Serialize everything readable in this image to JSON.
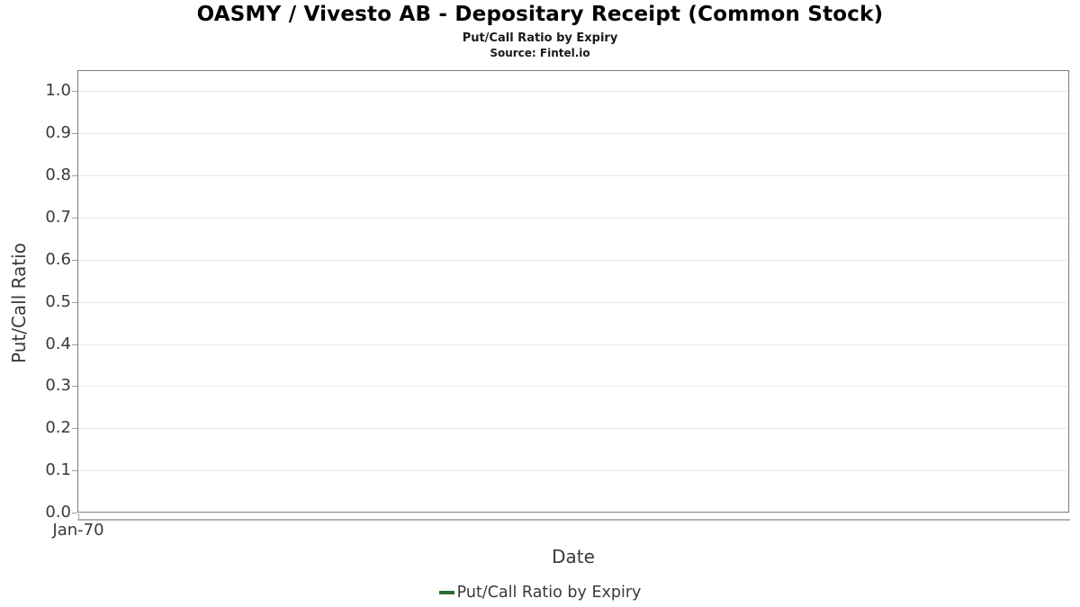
{
  "chart_data": {
    "type": "line",
    "title": "OASMY / Vivesto AB - Depositary Receipt (Common Stock)",
    "subtitle": "Put/Call Ratio by Expiry",
    "source": "Source: Fintel.io",
    "xlabel": "Date",
    "ylabel": "Put/Call Ratio",
    "x_ticks": [
      "Jan-70"
    ],
    "y_ticks": [
      0.0,
      0.1,
      0.2,
      0.3,
      0.4,
      0.5,
      0.6,
      0.7,
      0.8,
      0.9,
      1.0
    ],
    "ylim": [
      0,
      1.05
    ],
    "grid": true,
    "legend_position": "bottom",
    "series": [
      {
        "name": "Put/Call Ratio by Expiry",
        "color": "#2e6b34",
        "x": [],
        "values": []
      }
    ],
    "colors": {
      "grid": "#e7e7e7",
      "axis_border": "#7d7d7d",
      "tick": "#a0a0a0",
      "axis_line": "#b3b3b3",
      "text": "#3a3a3a",
      "title_text": "#000000"
    }
  }
}
